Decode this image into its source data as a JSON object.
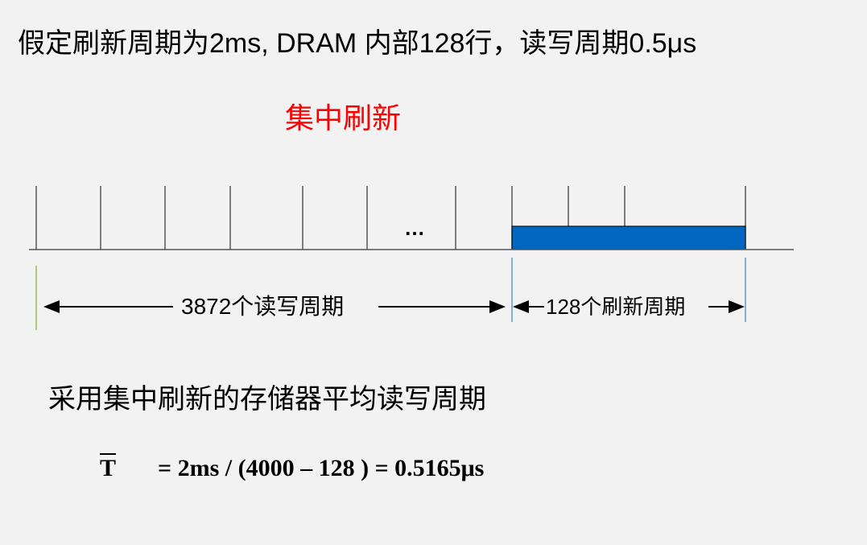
{
  "title": "假定刷新周期为2ms, DRAM 内部128行，读写周期0.5μs",
  "subtitle": "集中刷新",
  "timeline": {
    "ellipsis": "…",
    "read_write_label": "3872个读写周期",
    "refresh_label": "128个刷新周期",
    "refresh_block_color": "#0066bf",
    "read_write_marker_color": "#92c050",
    "refresh_marker_color": "#5b9bd5"
  },
  "heading": "采用集中刷新的存储器平均读写周期",
  "formula": {
    "symbol": "T",
    "expression": "= 2ms / (4000 – 128 ) = 0.5165μs"
  }
}
